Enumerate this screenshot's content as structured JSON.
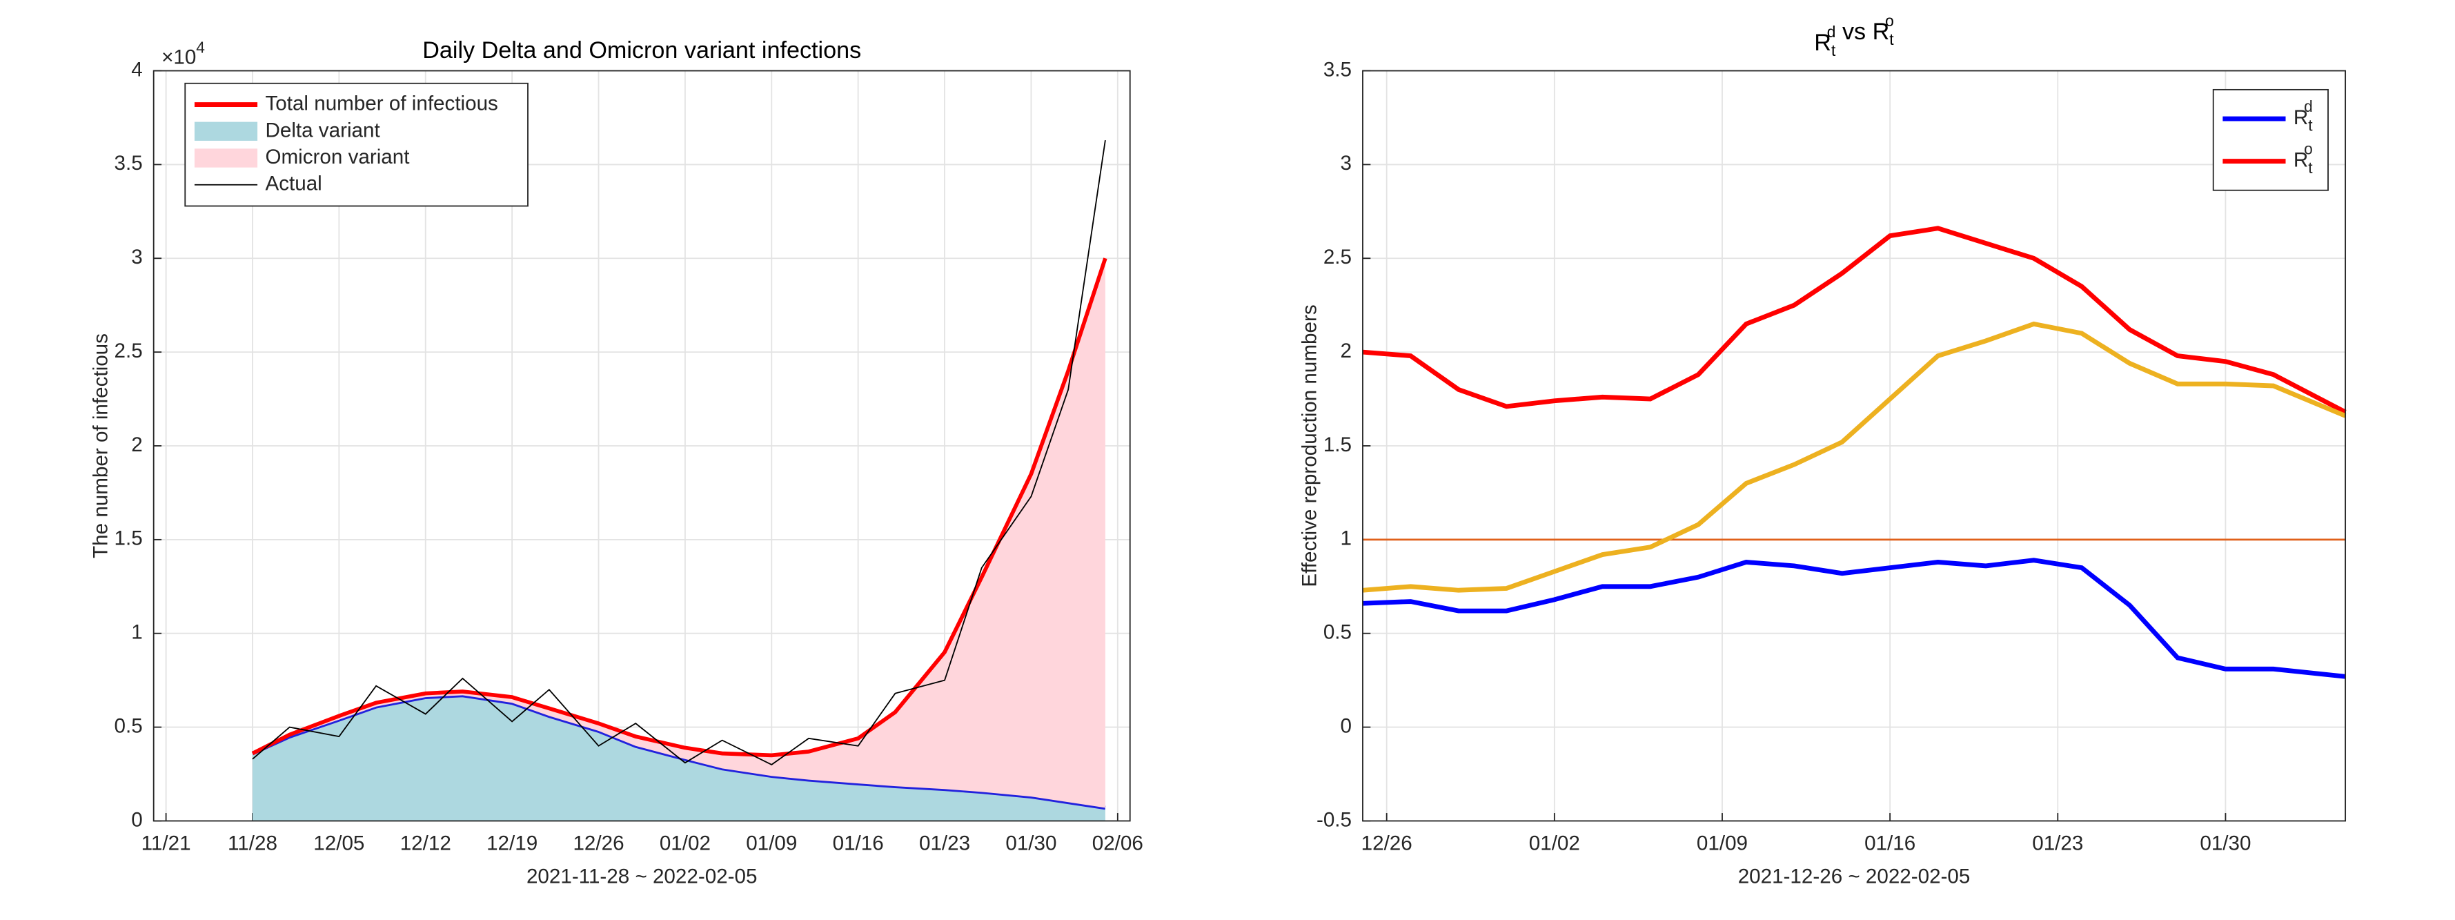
{
  "chart_data": [
    {
      "type": "area",
      "title": "Daily Delta and Omicron variant infections",
      "xlabel": "2021-11-28 ~ 2022-02-05",
      "ylabel": "The number of infectious",
      "y_multiplier": {
        "base": "×10",
        "sup": "4"
      },
      "grid": true,
      "legend": "upper left",
      "xlim": [
        "2021-11-20",
        "2022-02-07"
      ],
      "xticks": [
        {
          "value": "2021-11-21",
          "label": "11/21"
        },
        {
          "value": "2021-11-28",
          "label": "11/28"
        },
        {
          "value": "2021-12-05",
          "label": "12/05"
        },
        {
          "value": "2021-12-12",
          "label": "12/12"
        },
        {
          "value": "2021-12-19",
          "label": "12/19"
        },
        {
          "value": "2021-12-26",
          "label": "12/26"
        },
        {
          "value": "2022-01-02",
          "label": "01/02"
        },
        {
          "value": "2022-01-09",
          "label": "01/09"
        },
        {
          "value": "2022-01-16",
          "label": "01/16"
        },
        {
          "value": "2022-01-23",
          "label": "01/23"
        },
        {
          "value": "2022-01-30",
          "label": "01/30"
        },
        {
          "value": "2022-02-06",
          "label": "02/06"
        }
      ],
      "ylim": [
        0,
        40000
      ],
      "yticks": [
        0,
        {
          "value": 5000,
          "label": "0.5"
        },
        {
          "value": 10000,
          "label": "1"
        },
        {
          "value": 15000,
          "label": "1.5"
        },
        {
          "value": 20000,
          "label": "2"
        },
        {
          "value": 25000,
          "label": "2.5"
        },
        {
          "value": 30000,
          "label": "3"
        },
        {
          "value": 35000,
          "label": "3.5"
        },
        {
          "value": 40000,
          "label": "4"
        }
      ],
      "x": [
        "2021-11-28",
        "2021-12-01",
        "2021-12-05",
        "2021-12-08",
        "2021-12-12",
        "2021-12-15",
        "2021-12-19",
        "2021-12-22",
        "2021-12-26",
        "2021-12-29",
        "2022-01-02",
        "2022-01-05",
        "2022-01-09",
        "2022-01-12",
        "2022-01-16",
        "2022-01-19",
        "2022-01-23",
        "2022-01-26",
        "2022-01-30",
        "2022-02-02",
        "2022-02-05"
      ],
      "series": [
        {
          "name": "Total number of infectious",
          "color": "#ff0000",
          "style": "line",
          "values": [
            3600,
            4600,
            5600,
            6300,
            6800,
            6900,
            6600,
            6000,
            5200,
            4500,
            3900,
            3600,
            3500,
            3700,
            4400,
            5800,
            9000,
            13000,
            18500,
            24000,
            30000
          ]
        },
        {
          "name": "Delta variant",
          "color": "#add8e0",
          "edge_color": "#2222dd",
          "style": "stack",
          "values": [
            3600,
            4500,
            5400,
            6100,
            6600,
            6700,
            6300,
            5600,
            4800,
            4000,
            3300,
            2800,
            2400,
            2200,
            2000,
            1850,
            1700,
            1550,
            1300,
            1000,
            700
          ]
        },
        {
          "name": "Omicron variant",
          "color": "#ffd6dc",
          "style": "stack",
          "values": [
            0,
            100,
            200,
            200,
            200,
            200,
            300,
            400,
            400,
            500,
            600,
            800,
            1100,
            1500,
            2400,
            3950,
            7300,
            11450,
            17200,
            23000,
            29300
          ]
        },
        {
          "name": "Actual",
          "color": "#000000",
          "style": "thin",
          "values": [
            3300,
            5000,
            4500,
            7200,
            5700,
            7600,
            5300,
            7000,
            4000,
            5200,
            3100,
            4300,
            3000,
            4400,
            4000,
            6800,
            7500,
            13500,
            17300,
            23000,
            36300
          ]
        }
      ]
    },
    {
      "type": "line",
      "title_parts": [
        {
          "text": "R",
          "sub": "t",
          "sup": "d"
        },
        {
          "text": "vs"
        },
        {
          "text": "R",
          "sub": "t",
          "sup": "o"
        }
      ],
      "xlabel": "2021-12-26 ~ 2022-02-05",
      "ylabel": "Effective reproduction numbers",
      "grid": true,
      "legend": "upper right",
      "xlim": [
        "2021-12-25",
        "2022-02-04"
      ],
      "xticks": [
        {
          "value": "2021-12-26",
          "label": "12/26"
        },
        {
          "value": "2022-01-02",
          "label": "01/02"
        },
        {
          "value": "2022-01-09",
          "label": "01/09"
        },
        {
          "value": "2022-01-16",
          "label": "01/16"
        },
        {
          "value": "2022-01-23",
          "label": "01/23"
        },
        {
          "value": "2022-01-30",
          "label": "01/30"
        }
      ],
      "ylim": [
        -0.5,
        3.5
      ],
      "yticks": [
        -0.5,
        0,
        0.5,
        1,
        1.5,
        2,
        2.5,
        3,
        3.5
      ],
      "reference_lines": [
        {
          "value": 1,
          "color": "#e0601a"
        }
      ],
      "x": [
        "2021-12-25",
        "2021-12-27",
        "2021-12-29",
        "2021-12-31",
        "2022-01-02",
        "2022-01-04",
        "2022-01-06",
        "2022-01-08",
        "2022-01-10",
        "2022-01-12",
        "2022-01-14",
        "2022-01-16",
        "2022-01-18",
        "2022-01-20",
        "2022-01-22",
        "2022-01-24",
        "2022-01-26",
        "2022-01-28",
        "2022-01-30",
        "2022-02-01",
        "2022-02-04"
      ],
      "series": [
        {
          "name": "R",
          "sub": "t",
          "sup": "d",
          "color": "#0000ff",
          "values": [
            0.66,
            0.67,
            0.62,
            0.62,
            0.68,
            0.75,
            0.75,
            0.8,
            0.88,
            0.86,
            0.82,
            0.85,
            0.88,
            0.86,
            0.89,
            0.85,
            0.65,
            0.37,
            0.31,
            0.31,
            0.27
          ]
        },
        {
          "name": "R",
          "sub": "t",
          "sup": "o",
          "color": "#ff0000",
          "values": [
            2.0,
            1.98,
            1.8,
            1.71,
            1.74,
            1.76,
            1.75,
            1.88,
            2.15,
            2.25,
            2.42,
            2.62,
            2.66,
            2.58,
            2.5,
            2.35,
            2.12,
            1.98,
            1.95,
            1.88,
            1.68
          ]
        },
        {
          "color": "#edb120",
          "values": [
            0.73,
            0.75,
            0.73,
            0.74,
            0.83,
            0.92,
            0.96,
            1.08,
            1.3,
            1.4,
            1.52,
            1.75,
            1.98,
            2.06,
            2.15,
            2.1,
            1.94,
            1.83,
            1.83,
            1.82,
            1.66
          ]
        }
      ]
    }
  ]
}
